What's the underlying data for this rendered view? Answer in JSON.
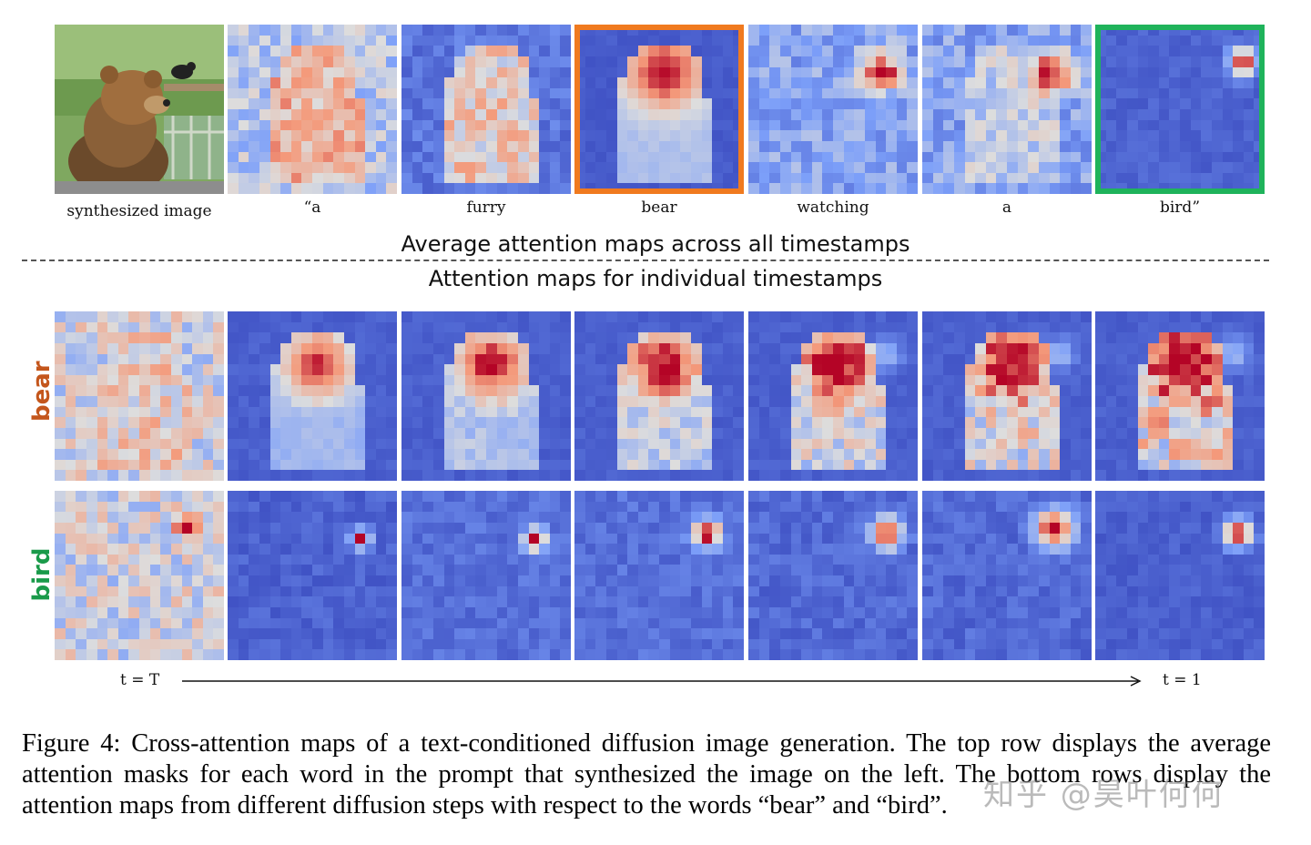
{
  "top_row": {
    "image_label": "synthesized image",
    "words": [
      "“a",
      "furry",
      "bear",
      "watching",
      "a",
      "bird”"
    ],
    "highlight": {
      "bear": "#f07a1f",
      "bird”": "#1fb35b"
    }
  },
  "headings": {
    "average": "Average attention maps across all timestamps",
    "individual": "Attention maps for individual  timestamps"
  },
  "rows": {
    "bear_label": "bear",
    "bird_label": "bird",
    "bear_color": "#c4561c",
    "bird_color": "#1a9a4a"
  },
  "timeline": {
    "start": "t = T",
    "end": "t = 1"
  },
  "caption": "Figure 4: Cross-attention maps of a text-conditioned diffusion image generation. The top row displays the average attention masks for each word in the prompt that synthesized the image on the left. The bottom rows display the attention maps from different diffusion steps with respect to the words “bear” and “bird”.",
  "watermark": "知乎 @昊叶何何",
  "icons": {
    "photo": "bear-photo-icon",
    "arrow": "timeline-arrow-icon"
  }
}
